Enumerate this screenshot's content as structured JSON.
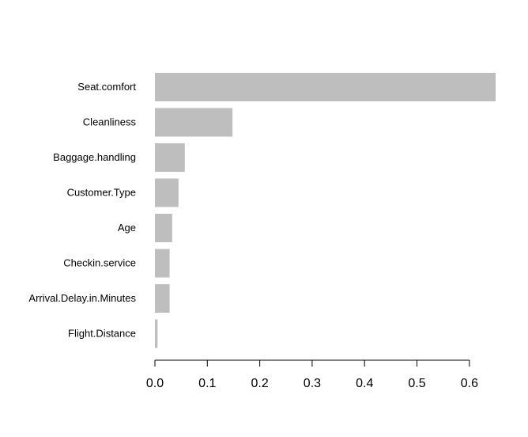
{
  "chart_data": {
    "type": "bar",
    "orientation": "horizontal",
    "categories": [
      "Seat.comfort",
      "Cleanliness",
      "Baggage.handling",
      "Customer.Type",
      "Age",
      "Checkin.service",
      "Arrival.Delay.in.Minutes",
      "Flight.Distance"
    ],
    "values": [
      0.65,
      0.148,
      0.057,
      0.045,
      0.033,
      0.028,
      0.028,
      0.005
    ],
    "xticks": [
      0.0,
      0.1,
      0.2,
      0.3,
      0.4,
      0.5,
      0.6
    ],
    "xtick_labels": [
      "0.0",
      "0.1",
      "0.2",
      "0.3",
      "0.4",
      "0.5",
      "0.6"
    ],
    "xlim": [
      0,
      0.65
    ],
    "title": "",
    "xlabel": "",
    "ylabel": "",
    "grid": false,
    "bar_color": "#bebebe"
  }
}
